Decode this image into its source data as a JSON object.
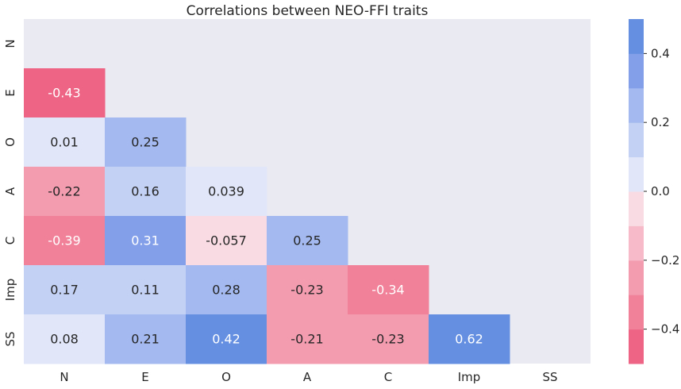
{
  "chart_data": {
    "type": "heatmap",
    "title": "Correlations between NEO-FFI traits",
    "labels": [
      "N",
      "E",
      "O",
      "A",
      "C",
      "Imp",
      "SS"
    ],
    "mask": "upper-triangle-including-diagonal",
    "cells": [
      {
        "row": "E",
        "col": "N",
        "value": -0.43,
        "label": "-0.43"
      },
      {
        "row": "O",
        "col": "N",
        "value": 0.01,
        "label": "0.01"
      },
      {
        "row": "O",
        "col": "E",
        "value": 0.25,
        "label": "0.25"
      },
      {
        "row": "A",
        "col": "N",
        "value": -0.22,
        "label": "-0.22"
      },
      {
        "row": "A",
        "col": "E",
        "value": 0.16,
        "label": "0.16"
      },
      {
        "row": "A",
        "col": "O",
        "value": 0.039,
        "label": "0.039"
      },
      {
        "row": "C",
        "col": "N",
        "value": -0.39,
        "label": "-0.39"
      },
      {
        "row": "C",
        "col": "E",
        "value": 0.31,
        "label": "0.31"
      },
      {
        "row": "C",
        "col": "O",
        "value": -0.057,
        "label": "-0.057"
      },
      {
        "row": "C",
        "col": "A",
        "value": 0.25,
        "label": "0.25"
      },
      {
        "row": "Imp",
        "col": "N",
        "value": 0.17,
        "label": "0.17"
      },
      {
        "row": "Imp",
        "col": "E",
        "value": 0.11,
        "label": "0.11"
      },
      {
        "row": "Imp",
        "col": "O",
        "value": 0.28,
        "label": "0.28"
      },
      {
        "row": "Imp",
        "col": "A",
        "value": -0.23,
        "label": "-0.23"
      },
      {
        "row": "Imp",
        "col": "C",
        "value": -0.34,
        "label": "-0.34"
      },
      {
        "row": "SS",
        "col": "N",
        "value": 0.08,
        "label": "0.08"
      },
      {
        "row": "SS",
        "col": "E",
        "value": 0.21,
        "label": "0.21"
      },
      {
        "row": "SS",
        "col": "O",
        "value": 0.42,
        "label": "0.42"
      },
      {
        "row": "SS",
        "col": "A",
        "value": -0.21,
        "label": "-0.21"
      },
      {
        "row": "SS",
        "col": "C",
        "value": -0.23,
        "label": "-0.23"
      },
      {
        "row": "SS",
        "col": "Imp",
        "value": 0.62,
        "label": "0.62"
      }
    ],
    "colorbar": {
      "range": [
        -0.5,
        0.5
      ],
      "ticks": [
        -0.4,
        -0.2,
        0.0,
        0.2,
        0.4
      ],
      "tick_labels": [
        "−0.4",
        "−0.2",
        "0.0",
        "0.2",
        "0.4"
      ],
      "colors": [
        "#ee6484",
        "#f08199",
        "#f39cb0",
        "#f6bac8",
        "#f9dce3",
        "#e1e7f9",
        "#c3d1f4",
        "#a3b9ef",
        "#839fe9",
        "#6590e2"
      ]
    },
    "background_color": "#eaeaf2",
    "grid": false,
    "legend": "colorbar-right"
  }
}
